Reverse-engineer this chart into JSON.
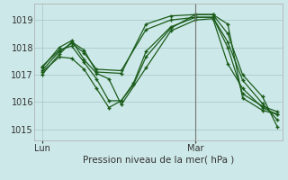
{
  "background_color": "#cde8e8",
  "grid_color": "#aacccc",
  "line_color": "#1a5c1a",
  "marker": "+",
  "xlabel": "Pression niveau de la mer( hPa )",
  "ylim": [
    1014.6,
    1019.6
  ],
  "yticks": [
    1015,
    1016,
    1017,
    1018,
    1019
  ],
  "xlim": [
    0,
    10
  ],
  "xtick_positions": [
    0.3,
    6.5
  ],
  "xtick_labels": [
    "Lun",
    "Mar"
  ],
  "vline_x": 6.5,
  "series": [
    {
      "x": [
        0.3,
        1.0,
        1.5,
        2.0,
        2.5,
        3.5,
        4.5,
        5.5,
        6.5,
        7.2,
        7.8,
        8.4,
        9.2,
        9.8
      ],
      "y": [
        1017.0,
        1017.75,
        1018.2,
        1017.9,
        1017.1,
        1017.05,
        1018.85,
        1019.15,
        1019.2,
        1019.2,
        1018.5,
        1017.0,
        1016.2,
        1015.1
      ]
    },
    {
      "x": [
        0.3,
        1.0,
        1.5,
        2.0,
        2.5,
        3.5,
        4.5,
        5.5,
        6.5,
        7.2,
        7.8,
        8.4,
        9.2,
        9.8
      ],
      "y": [
        1017.15,
        1017.85,
        1018.15,
        1017.8,
        1017.2,
        1017.15,
        1018.65,
        1019.0,
        1019.1,
        1019.1,
        1018.2,
        1016.8,
        1015.95,
        1015.35
      ]
    },
    {
      "x": [
        0.3,
        1.0,
        1.5,
        2.0,
        2.5,
        3.0,
        3.5,
        4.5,
        5.5,
        6.5,
        7.2,
        7.8,
        8.4,
        9.2,
        9.8
      ],
      "y": [
        1017.25,
        1018.0,
        1018.25,
        1017.55,
        1017.05,
        1016.85,
        1015.9,
        1017.25,
        1018.6,
        1019.0,
        1019.05,
        1017.4,
        1016.5,
        1015.8,
        1015.55
      ]
    },
    {
      "x": [
        0.3,
        1.0,
        1.5,
        2.0,
        2.5,
        3.0,
        3.5,
        4.0,
        4.5,
        5.5,
        6.5,
        7.2,
        7.8,
        8.4,
        9.2,
        9.8
      ],
      "y": [
        1017.3,
        1017.9,
        1018.05,
        1017.45,
        1016.85,
        1016.05,
        1016.05,
        1016.7,
        1017.85,
        1018.75,
        1019.1,
        1019.1,
        1018.0,
        1016.3,
        1015.85,
        1015.65
      ]
    },
    {
      "x": [
        0.3,
        1.0,
        1.5,
        2.0,
        2.5,
        3.0,
        3.5,
        4.0,
        4.5,
        5.5,
        6.5,
        7.2,
        7.8,
        8.4,
        9.2,
        9.8
      ],
      "y": [
        1017.1,
        1017.65,
        1017.6,
        1017.2,
        1016.5,
        1015.8,
        1016.05,
        1016.65,
        1017.65,
        1018.7,
        1019.2,
        1019.2,
        1018.85,
        1016.15,
        1015.7,
        1015.55
      ]
    }
  ]
}
